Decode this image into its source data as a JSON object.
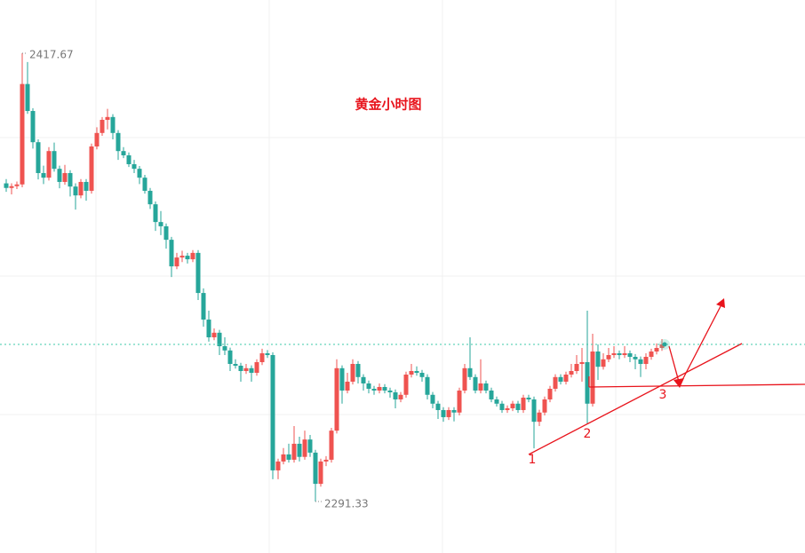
{
  "chart_data": {
    "type": "candlestick",
    "title": "黄金小时图",
    "ylim": [
      2276.81,
      2432.68
    ],
    "up_color": "#ef5350",
    "down_color": "#26a69a",
    "price_line": true,
    "annotations": [
      "1",
      "2",
      "3"
    ],
    "ohlc": [
      [
        2381.0,
        2382.2,
        2378.6,
        2379.7
      ],
      [
        2379.7,
        2381.0,
        2377.9,
        2380.2
      ],
      [
        2380.2,
        2381.5,
        2379.4,
        2380.7
      ],
      [
        2380.7,
        2417.67,
        2379.9,
        2409.0
      ],
      [
        2409.0,
        2415.2,
        2400.6,
        2401.4
      ],
      [
        2401.4,
        2402.2,
        2390.8,
        2392.6
      ],
      [
        2392.6,
        2393.4,
        2382.1,
        2383.9
      ],
      [
        2383.9,
        2386.0,
        2380.8,
        2382.6
      ],
      [
        2382.6,
        2391.2,
        2381.8,
        2390.1
      ],
      [
        2390.1,
        2392.5,
        2384.3,
        2385.1
      ],
      [
        2385.1,
        2386.0,
        2379.6,
        2381.4
      ],
      [
        2381.4,
        2386.2,
        2380.6,
        2383.9
      ],
      [
        2383.9,
        2384.7,
        2377.3,
        2380.1
      ],
      [
        2380.1,
        2381.0,
        2373.6,
        2377.6
      ],
      [
        2377.6,
        2382.2,
        2376.8,
        2381.4
      ],
      [
        2381.4,
        2382.2,
        2376.1,
        2378.9
      ],
      [
        2378.9,
        2392.2,
        2378.1,
        2391.4
      ],
      [
        2391.4,
        2396.8,
        2390.6,
        2395.2
      ],
      [
        2395.2,
        2399.7,
        2394.4,
        2398.9
      ],
      [
        2398.9,
        2402.0,
        2396.2,
        2399.7
      ],
      [
        2399.7,
        2400.5,
        2393.4,
        2395.2
      ],
      [
        2395.2,
        2396.0,
        2387.6,
        2390.1
      ],
      [
        2390.1,
        2391.2,
        2388.1,
        2388.9
      ],
      [
        2388.9,
        2389.7,
        2385.6,
        2386.4
      ],
      [
        2386.4,
        2387.6,
        2383.9,
        2385.1
      ],
      [
        2385.1,
        2385.9,
        2380.8,
        2382.6
      ],
      [
        2382.6,
        2383.4,
        2378.1,
        2378.9
      ],
      [
        2378.9,
        2379.7,
        2373.8,
        2375.1
      ],
      [
        2375.1,
        2375.9,
        2367.6,
        2370.1
      ],
      [
        2370.1,
        2373.2,
        2366.4,
        2368.9
      ],
      [
        2368.9,
        2369.7,
        2362.6,
        2365.1
      ],
      [
        2365.1,
        2365.9,
        2354.6,
        2357.6
      ],
      [
        2357.6,
        2361.4,
        2356.8,
        2360.1
      ],
      [
        2360.1,
        2362.0,
        2358.8,
        2360.6
      ],
      [
        2360.6,
        2361.4,
        2358.4,
        2359.6
      ],
      [
        2359.6,
        2362.2,
        2358.8,
        2361.4
      ],
      [
        2361.4,
        2362.2,
        2348.1,
        2350.1
      ],
      [
        2350.1,
        2351.4,
        2340.6,
        2342.6
      ],
      [
        2342.6,
        2345.1,
        2336.4,
        2337.6
      ],
      [
        2337.6,
        2340.1,
        2336.8,
        2338.9
      ],
      [
        2338.9,
        2339.7,
        2332.6,
        2335.1
      ],
      [
        2335.1,
        2337.6,
        2332.6,
        2333.9
      ],
      [
        2333.9,
        2334.7,
        2328.1,
        2330.1
      ],
      [
        2330.1,
        2331.4,
        2328.8,
        2329.6
      ],
      [
        2329.6,
        2330.4,
        2325.1,
        2328.1
      ],
      [
        2328.1,
        2330.1,
        2327.3,
        2328.9
      ],
      [
        2328.9,
        2329.7,
        2325.1,
        2327.6
      ],
      [
        2327.6,
        2331.4,
        2326.8,
        2330.6
      ],
      [
        2330.6,
        2334.4,
        2329.8,
        2333.1
      ],
      [
        2333.1,
        2334.0,
        2331.8,
        2332.6
      ],
      [
        2332.6,
        2333.4,
        2297.6,
        2300.1
      ],
      [
        2300.1,
        2303.4,
        2297.6,
        2302.6
      ],
      [
        2302.6,
        2306.4,
        2301.8,
        2304.6
      ],
      [
        2304.6,
        2307.6,
        2302.3,
        2303.1
      ],
      [
        2303.1,
        2312.6,
        2302.3,
        2307.6
      ],
      [
        2307.6,
        2309.6,
        2302.6,
        2303.9
      ],
      [
        2303.9,
        2311.3,
        2303.1,
        2308.8
      ],
      [
        2308.8,
        2310.1,
        2303.9,
        2305.1
      ],
      [
        2305.1,
        2305.9,
        2291.33,
        2296.3
      ],
      [
        2296.3,
        2303.4,
        2295.5,
        2302.6
      ],
      [
        2302.6,
        2304.1,
        2301.3,
        2303.1
      ],
      [
        2303.1,
        2312.1,
        2302.3,
        2311.3
      ],
      [
        2311.3,
        2331.4,
        2310.5,
        2328.9
      ],
      [
        2328.9,
        2329.7,
        2318.9,
        2322.6
      ],
      [
        2322.6,
        2327.6,
        2321.8,
        2325.1
      ],
      [
        2325.1,
        2331.4,
        2324.3,
        2330.1
      ],
      [
        2330.1,
        2330.9,
        2324.6,
        2326.4
      ],
      [
        2326.4,
        2327.2,
        2322.6,
        2324.6
      ],
      [
        2324.6,
        2325.4,
        2321.8,
        2323.1
      ],
      [
        2323.1,
        2323.9,
        2321.4,
        2322.6
      ],
      [
        2322.6,
        2324.6,
        2321.8,
        2323.6
      ],
      [
        2323.6,
        2324.4,
        2321.8,
        2322.6
      ],
      [
        2322.6,
        2323.4,
        2320.6,
        2322.1
      ],
      [
        2322.1,
        2322.9,
        2317.6,
        2320.1
      ],
      [
        2320.1,
        2322.2,
        2319.3,
        2321.4
      ],
      [
        2321.4,
        2327.9,
        2320.6,
        2327.1
      ],
      [
        2327.1,
        2330.1,
        2326.3,
        2328.1
      ],
      [
        2328.1,
        2329.4,
        2326.8,
        2327.6
      ],
      [
        2327.6,
        2328.4,
        2325.1,
        2326.4
      ],
      [
        2326.4,
        2327.2,
        2320.1,
        2321.4
      ],
      [
        2321.4,
        2322.2,
        2317.6,
        2318.9
      ],
      [
        2318.9,
        2319.7,
        2314.6,
        2317.1
      ],
      [
        2317.1,
        2317.9,
        2313.8,
        2315.1
      ],
      [
        2315.1,
        2317.9,
        2314.3,
        2317.1
      ],
      [
        2317.1,
        2317.9,
        2313.9,
        2316.4
      ],
      [
        2316.4,
        2323.4,
        2315.6,
        2322.6
      ],
      [
        2322.6,
        2330.1,
        2321.8,
        2328.9
      ],
      [
        2328.9,
        2337.6,
        2325.6,
        2326.4
      ],
      [
        2326.4,
        2327.2,
        2321.8,
        2322.6
      ],
      [
        2322.6,
        2331.4,
        2321.8,
        2324.6
      ],
      [
        2324.6,
        2325.4,
        2321.8,
        2322.6
      ],
      [
        2322.6,
        2323.4,
        2319.3,
        2320.1
      ],
      [
        2320.1,
        2320.9,
        2318.1,
        2318.9
      ],
      [
        2318.9,
        2319.7,
        2316.3,
        2317.1
      ],
      [
        2317.1,
        2318.4,
        2316.3,
        2317.6
      ],
      [
        2317.6,
        2319.7,
        2316.8,
        2318.9
      ],
      [
        2318.9,
        2319.7,
        2316.3,
        2317.1
      ],
      [
        2317.1,
        2321.4,
        2316.3,
        2320.6
      ],
      [
        2320.6,
        2321.4,
        2319.3,
        2320.1
      ],
      [
        2320.1,
        2320.9,
        2306.3,
        2313.8
      ],
      [
        2313.8,
        2317.2,
        2312.6,
        2316.4
      ],
      [
        2316.4,
        2320.9,
        2315.6,
        2320.1
      ],
      [
        2320.1,
        2323.9,
        2319.3,
        2323.1
      ],
      [
        2323.1,
        2327.2,
        2322.3,
        2326.4
      ],
      [
        2326.4,
        2327.2,
        2324.3,
        2325.1
      ],
      [
        2325.1,
        2327.9,
        2324.3,
        2327.1
      ],
      [
        2327.1,
        2330.1,
        2326.3,
        2328.1
      ],
      [
        2328.1,
        2332.6,
        2327.3,
        2330.1
      ],
      [
        2330.1,
        2334.6,
        2325.1,
        2330.6
      ],
      [
        2330.6,
        2345.1,
        2313.1,
        2318.9
      ],
      [
        2318.9,
        2338.6,
        2318.1,
        2333.6
      ],
      [
        2333.6,
        2335.6,
        2325.6,
        2329.3
      ],
      [
        2329.3,
        2333.1,
        2328.5,
        2331.4
      ],
      [
        2331.4,
        2334.6,
        2330.6,
        2332.6
      ],
      [
        2332.6,
        2335.1,
        2331.8,
        2333.1
      ],
      [
        2333.1,
        2333.9,
        2331.4,
        2332.6
      ],
      [
        2332.6,
        2335.1,
        2331.8,
        2333.1
      ],
      [
        2333.1,
        2333.9,
        2330.6,
        2332.1
      ],
      [
        2332.1,
        2332.9,
        2328.6,
        2331.4
      ],
      [
        2331.4,
        2332.2,
        2326.4,
        2330.1
      ],
      [
        2330.1,
        2333.1,
        2328.6,
        2332.1
      ],
      [
        2332.1,
        2334.4,
        2331.3,
        2333.6
      ],
      [
        2333.6,
        2335.9,
        2332.8,
        2334.6
      ],
      [
        2334.6,
        2337.1,
        2333.8,
        2335.6
      ]
    ]
  }
}
